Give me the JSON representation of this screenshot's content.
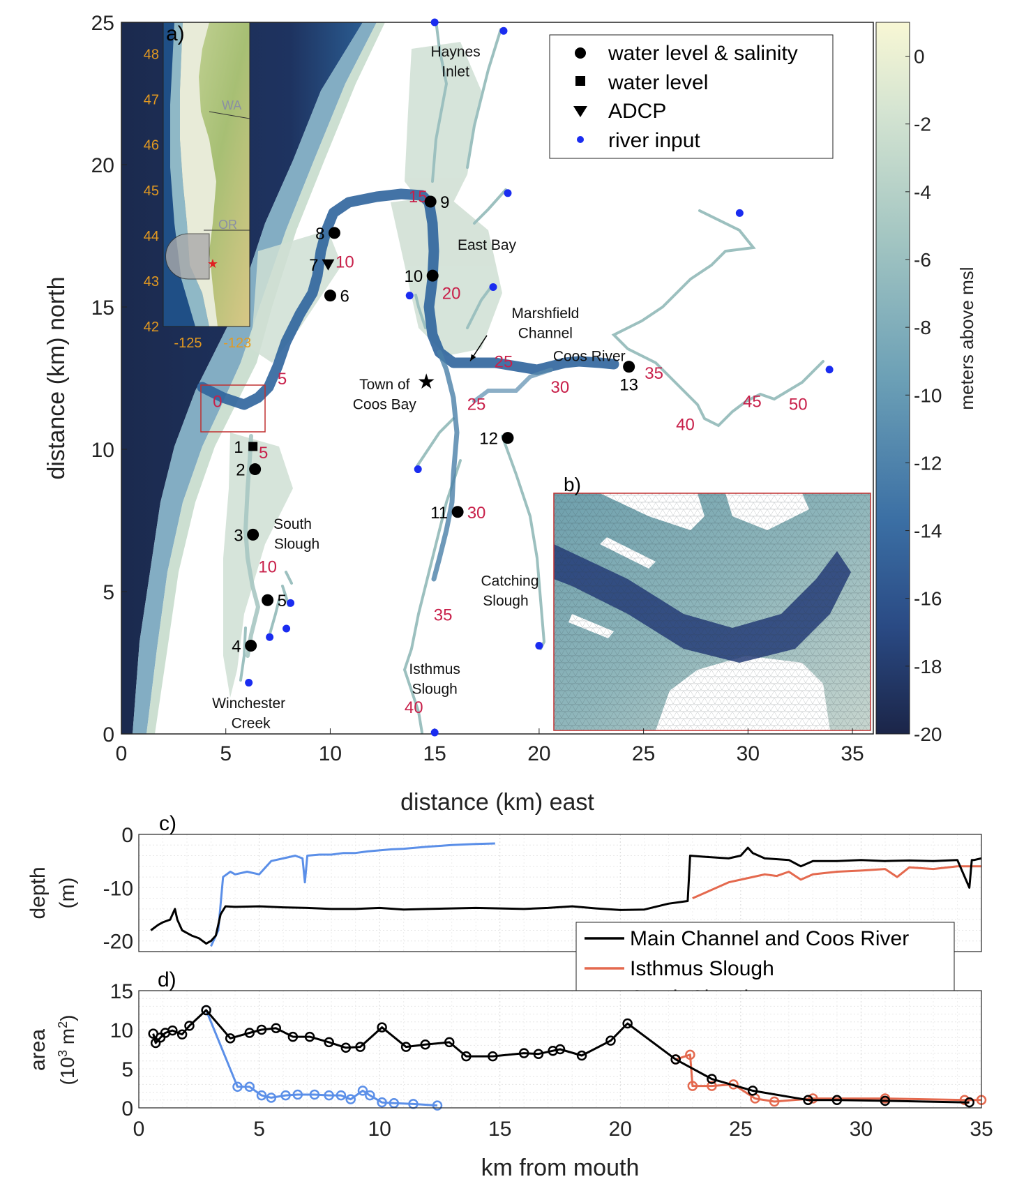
{
  "chart_data": [
    {
      "type": "scatter",
      "panel_label": "a)",
      "xlabel": "distance (km) east",
      "ylabel": "distance (km) north",
      "xlim": [
        0,
        36
      ],
      "ylim": [
        0,
        25
      ],
      "xticks": [
        0,
        5,
        10,
        15,
        20,
        25,
        30,
        35
      ],
      "yticks": [
        0,
        5,
        10,
        15,
        20,
        25
      ],
      "colorbar": {
        "label": "meters above msl",
        "range": [
          -20,
          1
        ],
        "ticks": [
          0,
          -2,
          -4,
          -6,
          -8,
          -10,
          -12,
          -14,
          -16,
          -18,
          -20
        ],
        "colors": [
          "#1b2a4e",
          "#2e5a94",
          "#4f89b0",
          "#88b5bb",
          "#c8dcc8",
          "#f6f6d2"
        ]
      },
      "legend": {
        "position": "top-right",
        "items": [
          {
            "label": "water level & salinity",
            "marker": "circle"
          },
          {
            "label": "water level",
            "marker": "square"
          },
          {
            "label": "ADCP",
            "marker": "triangle"
          },
          {
            "label": "river input",
            "marker": "blue-dot"
          }
        ]
      },
      "stations": [
        {
          "id": "1",
          "x": 6.3,
          "y": 10.1,
          "marker": "square"
        },
        {
          "id": "2",
          "x": 6.4,
          "y": 9.3,
          "marker": "circle"
        },
        {
          "id": "3",
          "x": 6.3,
          "y": 7.0,
          "marker": "circle"
        },
        {
          "id": "4",
          "x": 6.2,
          "y": 3.1,
          "marker": "circle"
        },
        {
          "id": "5",
          "x": 7.0,
          "y": 4.7,
          "marker": "circle"
        },
        {
          "id": "6",
          "x": 10.0,
          "y": 15.4,
          "marker": "circle"
        },
        {
          "id": "7",
          "x": 9.9,
          "y": 16.5,
          "marker": "triangle"
        },
        {
          "id": "8",
          "x": 10.2,
          "y": 17.6,
          "marker": "circle"
        },
        {
          "id": "9",
          "x": 14.8,
          "y": 18.7,
          "marker": "circle"
        },
        {
          "id": "10",
          "x": 14.9,
          "y": 16.1,
          "marker": "circle"
        },
        {
          "id": "11",
          "x": 16.1,
          "y": 7.8,
          "marker": "circle"
        },
        {
          "id": "12",
          "x": 18.5,
          "y": 10.4,
          "marker": "circle"
        },
        {
          "id": "13",
          "x": 24.3,
          "y": 12.9,
          "marker": "circle"
        }
      ],
      "river_inputs": [
        [
          15.0,
          25.0
        ],
        [
          18.3,
          24.7
        ],
        [
          18.5,
          19.0
        ],
        [
          13.8,
          15.4
        ],
        [
          17.8,
          15.7
        ],
        [
          29.6,
          18.3
        ],
        [
          33.9,
          12.8
        ],
        [
          14.2,
          9.3
        ],
        [
          8.1,
          4.6
        ],
        [
          7.9,
          3.7
        ],
        [
          7.1,
          3.4
        ],
        [
          6.1,
          1.8
        ],
        [
          15.0,
          0.05
        ],
        [
          20.0,
          3.1
        ]
      ],
      "km_markers": [
        {
          "label": "0",
          "x": 4.6,
          "y": 11.7
        },
        {
          "label": "5",
          "x": 7.7,
          "y": 12.5
        },
        {
          "label": "5",
          "x": 6.8,
          "y": 9.9
        },
        {
          "label": "10",
          "x": 7.0,
          "y": 5.9
        },
        {
          "label": "10",
          "x": 10.7,
          "y": 16.6
        },
        {
          "label": "15",
          "x": 14.2,
          "y": 18.9
        },
        {
          "label": "20",
          "x": 15.8,
          "y": 15.5
        },
        {
          "label": "25",
          "x": 18.3,
          "y": 13.1
        },
        {
          "label": "25",
          "x": 17.0,
          "y": 11.6
        },
        {
          "label": "30",
          "x": 21.0,
          "y": 12.2
        },
        {
          "label": "35",
          "x": 25.5,
          "y": 12.7
        },
        {
          "label": "40",
          "x": 27.0,
          "y": 10.9
        },
        {
          "label": "45",
          "x": 30.2,
          "y": 11.7
        },
        {
          "label": "50",
          "x": 32.4,
          "y": 11.6
        },
        {
          "label": "30",
          "x": 17.0,
          "y": 7.8
        },
        {
          "label": "35",
          "x": 15.4,
          "y": 4.2
        },
        {
          "label": "40",
          "x": 14.0,
          "y": 0.95
        }
      ],
      "place_labels": [
        {
          "text": "Haynes",
          "x": 16.0,
          "y": 24.0
        },
        {
          "text": "Inlet",
          "x": 16.0,
          "y": 23.3
        },
        {
          "text": "East Bay",
          "x": 17.5,
          "y": 17.2
        },
        {
          "text": "Marshfield",
          "x": 20.3,
          "y": 14.8
        },
        {
          "text": "Channel",
          "x": 20.3,
          "y": 14.1
        },
        {
          "text": "Coos River",
          "x": 22.4,
          "y": 13.3
        },
        {
          "text": "Town of",
          "x": 12.6,
          "y": 12.3
        },
        {
          "text": "Coos Bay",
          "x": 12.6,
          "y": 11.6
        },
        {
          "text": "South",
          "x": 8.2,
          "y": 7.4
        },
        {
          "text": "Slough",
          "x": 8.4,
          "y": 6.7
        },
        {
          "text": "Catching",
          "x": 18.6,
          "y": 5.4
        },
        {
          "text": "Slough",
          "x": 18.4,
          "y": 4.7
        },
        {
          "text": "Isthmus",
          "x": 15.0,
          "y": 2.3
        },
        {
          "text": "Slough",
          "x": 15.0,
          "y": 1.6
        },
        {
          "text": "Winchester",
          "x": 6.1,
          "y": 1.1
        },
        {
          "text": "Creek",
          "x": 6.2,
          "y": 0.4
        }
      ],
      "annotation_arrow": {
        "from": [
          17.5,
          14.0
        ],
        "to": [
          16.7,
          13.1
        ]
      },
      "town_star": {
        "x": 14.6,
        "y": 12.4
      },
      "zoom_box": {
        "x": [
          4.0,
          7.0
        ],
        "y": [
          10.5,
          12.1
        ]
      },
      "inset": {
        "xlim": [
          -126,
          -122.5
        ],
        "ylim": [
          42,
          48.7
        ],
        "xticks": [
          "-125",
          "-123"
        ],
        "yticks": [
          "48",
          "47",
          "46",
          "45",
          "44",
          "43",
          "42"
        ],
        "labels": [
          "WA",
          "OR"
        ],
        "star": {
          "lon": -123.1,
          "lat": 43.4
        }
      }
    },
    {
      "type": "image",
      "panel_label": "b)",
      "description_visible": "zoomed mesh"
    },
    {
      "type": "line",
      "panel_label": "c)",
      "xlabel": "",
      "ylabel": "depth",
      "ylabel2": "(m)",
      "xlim": [
        0,
        35
      ],
      "ylim": [
        -22,
        0
      ],
      "yticks": [
        0,
        -10,
        -20
      ],
      "grid": true,
      "legend": {
        "position": "bottom-right"
      },
      "series": [
        {
          "name": "Main Channel and Coos River",
          "color": "#000000",
          "x": [
            0.5,
            0.8,
            1.0,
            1.3,
            1.5,
            1.6,
            1.8,
            2.0,
            2.2,
            2.5,
            2.8,
            3.0,
            3.2,
            3.4,
            3.6,
            4.0,
            5.0,
            6.0,
            7.0,
            8.0,
            9.0,
            10.0,
            11.0,
            12.0,
            13.0,
            14.0,
            15.0,
            16.0,
            17.0,
            18.0,
            19.0,
            20.0,
            21.0,
            22.0,
            22.8,
            22.9,
            23.5,
            24.5,
            25.0,
            25.3,
            25.5,
            26.0,
            27.0,
            27.5,
            28.0,
            29.0,
            30.0,
            31.0,
            32.0,
            33.0,
            34.0,
            34.5,
            34.6,
            34.7,
            35.0
          ],
          "y": [
            -18.0,
            -17.0,
            -16.5,
            -16.0,
            -14.0,
            -16.0,
            -18.0,
            -18.5,
            -19.0,
            -19.5,
            -20.5,
            -20.0,
            -19.0,
            -15.0,
            -13.5,
            -13.6,
            -13.5,
            -13.7,
            -13.8,
            -14.0,
            -14.0,
            -13.8,
            -14.1,
            -14.0,
            -13.9,
            -13.8,
            -13.9,
            -14.0,
            -13.8,
            -13.5,
            -13.9,
            -14.2,
            -14.1,
            -13.0,
            -12.5,
            -4.0,
            -4.2,
            -4.5,
            -4.0,
            -2.5,
            -3.5,
            -4.5,
            -4.8,
            -6.0,
            -5.0,
            -5.0,
            -4.8,
            -5.0,
            -4.9,
            -5.0,
            -4.8,
            -10.0,
            -4.8,
            -4.8,
            -4.5
          ]
        },
        {
          "name": "Isthmus Slough",
          "color": "#e4694e",
          "x": [
            23.0,
            23.5,
            24.0,
            24.5,
            25.0,
            25.5,
            26.0,
            26.5,
            27.0,
            27.5,
            28.0,
            29.0,
            30.0,
            31.0,
            31.5,
            32.0,
            33.0,
            34.0,
            35.0
          ],
          "y": [
            -12.0,
            -11.0,
            -10.0,
            -9.0,
            -8.5,
            -8.0,
            -7.5,
            -7.8,
            -7.0,
            -8.5,
            -7.5,
            -7.0,
            -6.8,
            -6.5,
            -8.0,
            -6.2,
            -6.5,
            -6.0,
            -6.0
          ]
        },
        {
          "name": "South Slough",
          "color": "#5b8fe8",
          "x": [
            3.0,
            3.3,
            3.5,
            3.8,
            4.0,
            4.5,
            5.0,
            5.5,
            6.0,
            6.5,
            6.8,
            6.9,
            7.0,
            7.5,
            8.0,
            8.5,
            9.0,
            9.5,
            10.0,
            10.5,
            11.0,
            11.5,
            12.0,
            13.0,
            14.0,
            14.8
          ],
          "y": [
            -21.0,
            -18.0,
            -8.0,
            -7.0,
            -7.5,
            -7.0,
            -7.5,
            -5.0,
            -4.5,
            -4.0,
            -4.5,
            -9.0,
            -4.0,
            -3.8,
            -3.8,
            -3.5,
            -3.5,
            -3.2,
            -3.0,
            -2.8,
            -2.7,
            -2.5,
            -2.3,
            -2.0,
            -1.8,
            -1.7
          ]
        }
      ]
    },
    {
      "type": "line",
      "panel_label": "d)",
      "xlabel": "km from mouth",
      "ylabel": "area",
      "ylabel2": "(10",
      "ylabel2_sup": "3",
      "ylabel2_tail": " m",
      "ylabel2_sup2": "2",
      "ylabel2_close": ")",
      "xlim": [
        0,
        35
      ],
      "ylim": [
        0,
        15
      ],
      "xticks": [
        0,
        5,
        10,
        15,
        20,
        25,
        30,
        35
      ],
      "yticks": [
        0,
        5,
        10,
        15
      ],
      "grid": true,
      "series": [
        {
          "name": "Main Channel and Coos River",
          "color": "#000000",
          "x": [
            0.6,
            0.7,
            0.9,
            1.1,
            1.4,
            1.8,
            2.1,
            2.8,
            3.8,
            4.6,
            5.1,
            5.7,
            6.4,
            7.1,
            7.9,
            8.6,
            9.2,
            10.1,
            11.1,
            11.9,
            12.9,
            13.6,
            14.7,
            16.0,
            16.6,
            17.2,
            17.5,
            18.4,
            19.6,
            20.3,
            22.3,
            23.8,
            25.5,
            27.8,
            29.0,
            31.0,
            34.5
          ],
          "y": [
            9.5,
            8.3,
            9.0,
            9.6,
            9.9,
            9.4,
            10.5,
            12.5,
            8.9,
            9.6,
            10.0,
            10.2,
            9.1,
            9.1,
            8.4,
            7.7,
            7.8,
            10.3,
            7.8,
            8.1,
            8.4,
            6.6,
            6.6,
            7.0,
            6.9,
            7.3,
            7.5,
            6.7,
            8.6,
            10.8,
            6.2,
            3.7,
            2.2,
            1.0,
            1.0,
            0.9,
            0.7
          ]
        },
        {
          "name": "Isthmus Slough",
          "color": "#e4694e",
          "x": [
            22.3,
            22.9,
            23.0,
            23.8,
            24.7,
            25.6,
            26.4,
            28.0,
            31.0,
            34.3,
            35.0
          ],
          "y": [
            6.2,
            6.8,
            2.8,
            2.8,
            3.0,
            1.2,
            0.8,
            1.2,
            1.2,
            1.0,
            1.0
          ]
        },
        {
          "name": "South Slough",
          "color": "#5b8fe8",
          "x": [
            2.8,
            4.1,
            4.6,
            5.1,
            5.5,
            6.1,
            6.6,
            7.3,
            7.9,
            8.4,
            8.8,
            9.3,
            9.6,
            10.1,
            10.6,
            11.4,
            12.4
          ],
          "y": [
            12.5,
            2.7,
            2.7,
            1.6,
            1.3,
            1.6,
            1.7,
            1.7,
            1.6,
            1.6,
            1.1,
            2.2,
            1.6,
            0.7,
            0.6,
            0.5,
            0.3
          ]
        }
      ]
    }
  ]
}
